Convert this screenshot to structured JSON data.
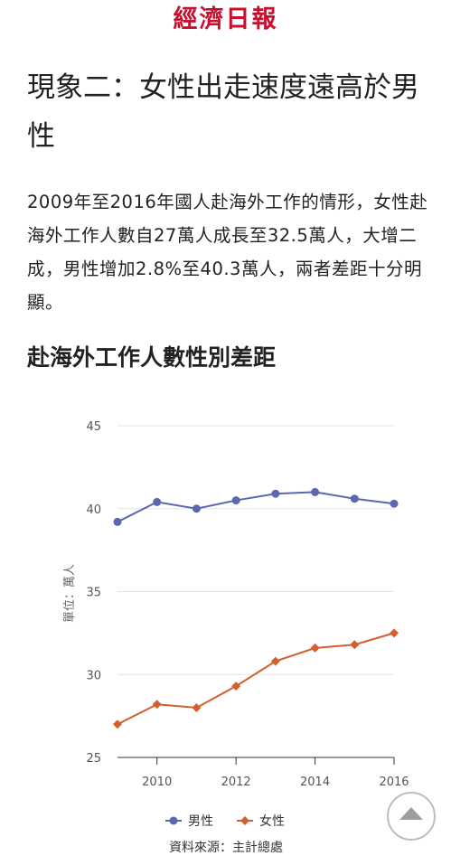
{
  "masthead": {
    "logo_text": "經濟日報"
  },
  "article": {
    "headline": "現象二：女性出走速度遠高於男性",
    "body": "2009年至2016年國人赴海外工作的情形，女性赴海外工作人數自27萬人成長至32.5萬人，大增二成，男性增加2.8%至40.3萬人，兩者差距十分明顯。",
    "chart_heading": "赴海外工作人數性別差距"
  },
  "chart_data": {
    "type": "line",
    "title": "",
    "xlabel": "",
    "ylabel": "單位：萬人",
    "x": [
      2009,
      2010,
      2011,
      2012,
      2013,
      2014,
      2015,
      2016
    ],
    "x_ticks": [
      2010,
      2012,
      2014,
      2016
    ],
    "x_tick_labels": [
      "2010",
      "2012",
      "2014",
      "2016"
    ],
    "ylim": [
      25,
      45
    ],
    "y_ticks": [
      25,
      30,
      35,
      40,
      45
    ],
    "y_tick_labels": [
      "25",
      "30",
      "35",
      "40",
      "45"
    ],
    "grid": "horizontal",
    "legend_position": "bottom",
    "source": "資料來源：主計總處",
    "series": [
      {
        "name": "男性",
        "color": "#5b67ae",
        "marker": "circle",
        "values": [
          39.2,
          40.4,
          40.0,
          40.5,
          40.9,
          41.0,
          40.6,
          40.3
        ]
      },
      {
        "name": "女性",
        "color": "#d35f2e",
        "marker": "diamond",
        "values": [
          27.0,
          28.2,
          28.0,
          29.3,
          30.8,
          31.6,
          31.8,
          32.5
        ]
      }
    ]
  },
  "icons": {
    "scroll_top": "chevron-up-icon"
  }
}
